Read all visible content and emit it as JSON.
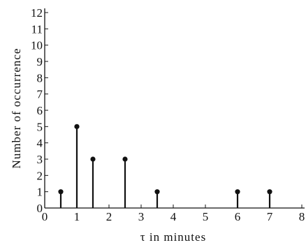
{
  "chart_data": {
    "type": "stem",
    "title": "",
    "xlabel": "τ in minutes",
    "ylabel": "Number of occurrence",
    "xlim": [
      0,
      8
    ],
    "ylim": [
      0,
      12
    ],
    "x_ticks": [
      "0",
      "1",
      "2",
      "3",
      "4",
      "5",
      "6",
      "7",
      "8"
    ],
    "y_ticks": [
      "0",
      "1",
      "2",
      "3",
      "4",
      "5",
      "6",
      "7",
      "8",
      "9",
      "10",
      "11",
      "12"
    ],
    "grid": false,
    "series": [
      {
        "points": [
          {
            "x": 0.5,
            "y": 1
          },
          {
            "x": 1,
            "y": 5
          },
          {
            "x": 1.5,
            "y": 3
          },
          {
            "x": 2.5,
            "y": 3
          },
          {
            "x": 3.5,
            "y": 1
          },
          {
            "x": 6,
            "y": 1
          },
          {
            "x": 7,
            "y": 1
          }
        ]
      }
    ]
  }
}
